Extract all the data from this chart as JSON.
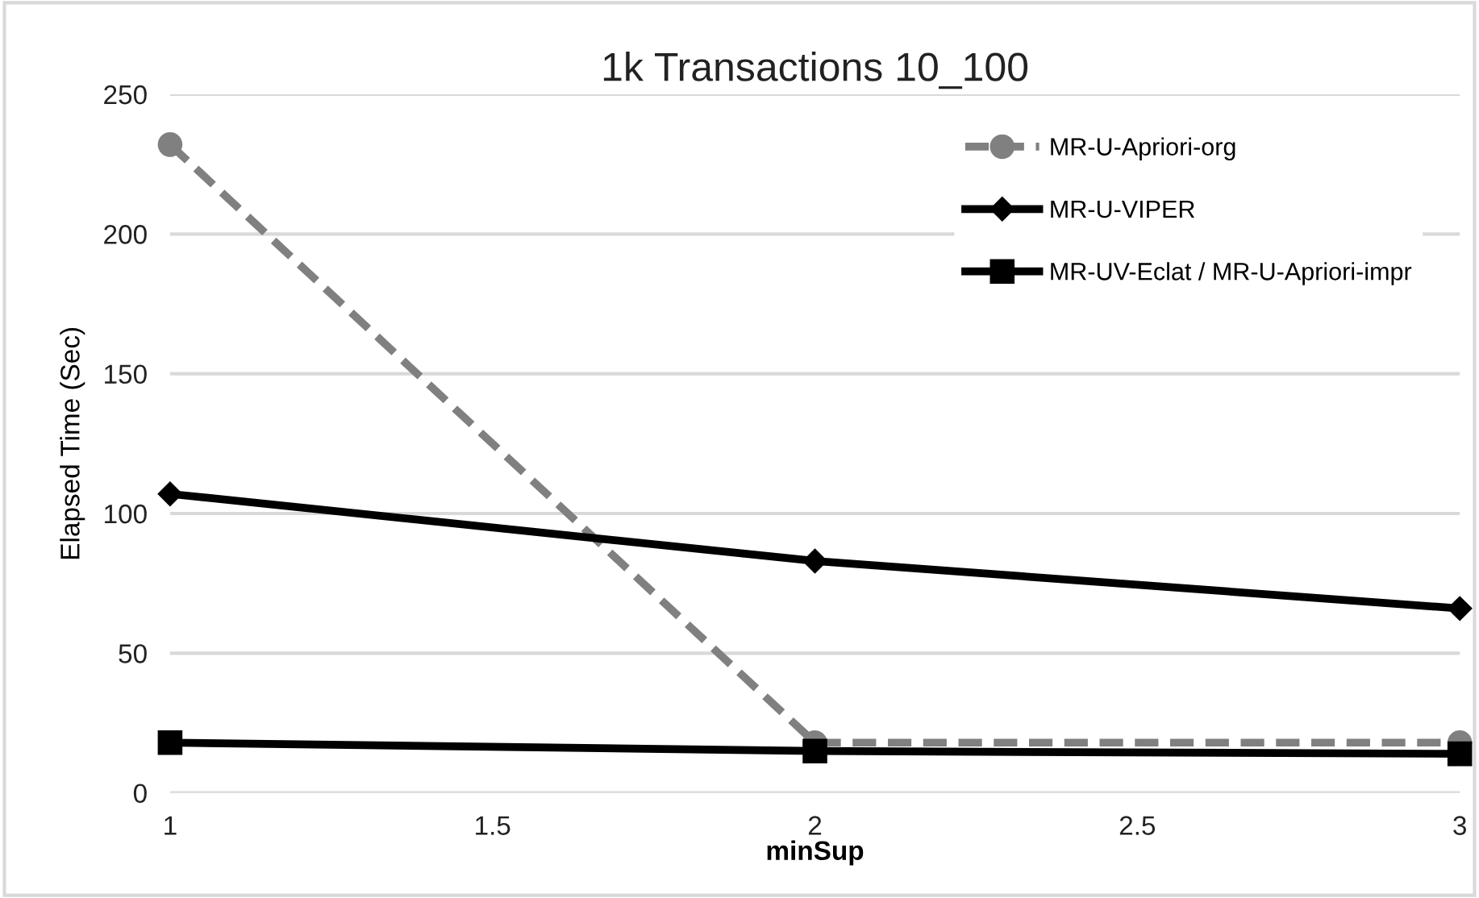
{
  "chart_data": {
    "type": "line",
    "title": "1k Transactions 10_100",
    "xlabel": "minSup",
    "ylabel": "Elapsed Time (Sec)",
    "x": [
      1,
      2,
      3
    ],
    "series": [
      {
        "name": "MR-U-Apriori-org",
        "color": "#808080",
        "values": [
          232,
          18,
          18
        ],
        "marker": "circle",
        "line_style": "dashed"
      },
      {
        "name": "MR-U-VIPER",
        "color": "#000000",
        "values": [
          107,
          83,
          66
        ],
        "marker": "diamond",
        "line_style": "solid"
      },
      {
        "name": "MR-UV-Eclat / MR-U-Apriori-impr",
        "color": "#000000",
        "values": [
          18,
          15,
          14
        ],
        "marker": "square",
        "line_style": "solid"
      }
    ],
    "xlim": [
      1,
      3
    ],
    "xticks": [
      1,
      1.5,
      2,
      2.5,
      3
    ],
    "ylim": [
      0,
      250
    ],
    "yticks": [
      0,
      50,
      100,
      150,
      200,
      250
    ],
    "grid": "y",
    "legend": "top right"
  }
}
